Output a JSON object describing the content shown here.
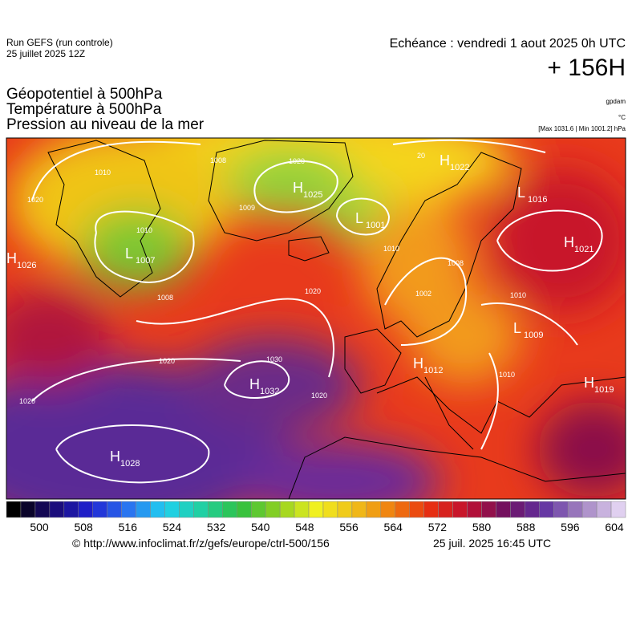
{
  "header": {
    "run": "Run GEFS (run controle)",
    "run_date": "25 juillet 2025 12Z",
    "echeance": "Echéance : vendredi 1 aout 2025 0h UTC",
    "lead": "+ 156H",
    "titles": [
      "Géopotentiel à 500hPa",
      "Température à 500hPa",
      "Pression au niveau de la mer"
    ],
    "units": [
      "gpdam",
      "°C",
      "[Max 1031.6 | Min 1001.2] hPa"
    ]
  },
  "centers": [
    {
      "type": "H",
      "value": "1025"
    },
    {
      "type": "L",
      "value": "1001"
    },
    {
      "type": "L",
      "value": "1007"
    },
    {
      "type": "H",
      "value": "1022"
    },
    {
      "type": "L",
      "value": "1016"
    },
    {
      "type": "H",
      "value": "1021"
    },
    {
      "type": "H",
      "value": "1026"
    },
    {
      "type": "H",
      "value": "1032"
    },
    {
      "type": "H",
      "value": "1028"
    },
    {
      "type": "H",
      "value": "1012"
    },
    {
      "type": "L",
      "value": "1009"
    },
    {
      "type": "H",
      "value": "1019"
    }
  ],
  "isobar_labels": [
    "1008",
    "1020",
    "1009",
    "1010",
    "1008",
    "1020",
    "1020",
    "1030",
    "1020",
    "1020",
    "1010",
    "1008",
    "1002",
    "1010",
    "1010",
    "1010",
    "1020",
    "20"
  ],
  "colorbar": {
    "labels": [
      500,
      508,
      516,
      524,
      532,
      540,
      548,
      556,
      564,
      572,
      580,
      588,
      596,
      604
    ]
  },
  "footer": {
    "url": "© http://www.infoclimat.fr/z/gefs/europe/ctrl-500/156",
    "stamp": "25 juil. 2025 16:45 UTC"
  }
}
